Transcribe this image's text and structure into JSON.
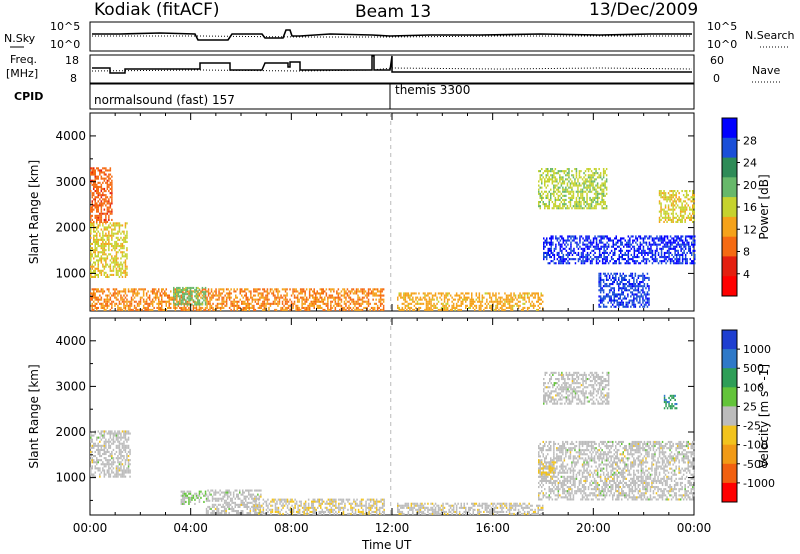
{
  "header": {
    "radar": "Kodiak (fitACF)",
    "beam": "Beam 13",
    "date": "13/Dec/2009"
  },
  "strips": {
    "nsky_label": "N.Sky",
    "nsky_scale_top": "10^5",
    "nsky_scale_bottom": "10^0",
    "nsearch_label": "N.Search",
    "nsearch_scale_top": "10^5",
    "nsearch_scale_bottom": "10^0",
    "freq_label_1": "Freq.",
    "freq_label_2": "[MHz]",
    "freq_ticks": [
      "18",
      "8"
    ],
    "nave_label": "Nave",
    "nave_ticks": [
      "60",
      "0"
    ],
    "cpid_label": "CPID",
    "cpid_segments": [
      {
        "label": "normalsound (fast) 157",
        "start_ut": 0.0,
        "end_ut": 11.85
      },
      {
        "label": "themis 3300",
        "start_ut": 11.85,
        "end_ut": 24.0
      }
    ]
  },
  "axes": {
    "ylabel": "Slant Range [km]",
    "xlabel": "Time UT",
    "x_ticks": [
      "00:00",
      "04:00",
      "08:00",
      "12:00",
      "16:00",
      "20:00",
      "00:00"
    ],
    "y_ticks": [
      "1000",
      "2000",
      "3000",
      "4000"
    ]
  },
  "colors": {
    "power_scale": [
      "#0000ff",
      "#1a4fd8",
      "#2e8b57",
      "#67b86a",
      "#c6d32e",
      "#f5a21a",
      "#f56a12",
      "#e41f0f",
      "#ff0000"
    ],
    "velocity_scale": [
      "#1f3fd0",
      "#2f79c8",
      "#2e9e57",
      "#63c43a",
      "#bcbcbc",
      "#f2c31d",
      "#f19a16",
      "#f16010",
      "#ff0000"
    ],
    "ground_scatter": "#bcbcbc"
  },
  "chart_data": [
    {
      "type": "heatmap",
      "panel": "power",
      "title": "",
      "xlabel": "Time UT",
      "ylabel": "Slant Range [km]",
      "xlim": [
        0,
        24
      ],
      "ylim": [
        180,
        4500
      ],
      "colorbar": {
        "label": "Power [dB]",
        "ticks": [
          "28",
          "24",
          "20",
          "16",
          "12",
          "8",
          "4"
        ],
        "range": [
          0,
          30
        ]
      },
      "regions": [
        {
          "t0": 0.0,
          "t1": 1.5,
          "r0": 900,
          "r1": 2100,
          "value": 14
        },
        {
          "t0": 0.0,
          "t1": 0.9,
          "r0": 2100,
          "r1": 3300,
          "value": 8
        },
        {
          "t0": 0.0,
          "t1": 11.7,
          "r0": 180,
          "r1": 650,
          "value": 10
        },
        {
          "t0": 3.3,
          "t1": 4.6,
          "r0": 300,
          "r1": 700,
          "value": 18
        },
        {
          "t0": 12.2,
          "t1": 18.0,
          "r0": 180,
          "r1": 550,
          "value": 12
        },
        {
          "t0": 18.0,
          "t1": 24.0,
          "r0": 1200,
          "r1": 1800,
          "value": 27
        },
        {
          "t0": 20.2,
          "t1": 22.2,
          "r0": 250,
          "r1": 1000,
          "value": 26
        },
        {
          "t0": 17.8,
          "t1": 20.5,
          "r0": 2400,
          "r1": 3300,
          "value": 16
        },
        {
          "t0": 22.6,
          "t1": 24.0,
          "r0": 2100,
          "r1": 2800,
          "value": 14
        }
      ]
    },
    {
      "type": "heatmap",
      "panel": "velocity",
      "title": "",
      "xlabel": "Time UT",
      "ylabel": "Slant Range [km]",
      "xlim": [
        0,
        24
      ],
      "ylim": [
        180,
        4500
      ],
      "colorbar": {
        "label": "Velocity [m s^-1]",
        "ticks": [
          "1000",
          "500",
          "100",
          "25",
          "-25",
          "-100",
          "-500",
          "-1000"
        ],
        "range": [
          -1200,
          1200
        ]
      },
      "regions": [
        {
          "t0": 0.0,
          "t1": 1.6,
          "r0": 1000,
          "r1": 2000,
          "value": 0
        },
        {
          "t0": 3.6,
          "t1": 4.6,
          "r0": 400,
          "r1": 700,
          "value": 120
        },
        {
          "t0": 4.6,
          "t1": 6.8,
          "r0": 200,
          "r1": 700,
          "value": 0
        },
        {
          "t0": 6.5,
          "t1": 11.7,
          "r0": 180,
          "r1": 500,
          "value": -80
        },
        {
          "t0": 12.2,
          "t1": 18.0,
          "r0": 180,
          "r1": 450,
          "value": -40
        },
        {
          "t0": 17.8,
          "t1": 24.0,
          "r0": 500,
          "r1": 1800,
          "value": 0
        },
        {
          "t0": 17.8,
          "t1": 18.4,
          "r0": 1000,
          "r1": 1400,
          "value": -150
        },
        {
          "t0": 18.0,
          "t1": 20.6,
          "r0": 2600,
          "r1": 3300,
          "value": 0
        },
        {
          "t0": 22.8,
          "t1": 23.3,
          "r0": 2500,
          "r1": 2800,
          "value": 600
        }
      ]
    }
  ]
}
